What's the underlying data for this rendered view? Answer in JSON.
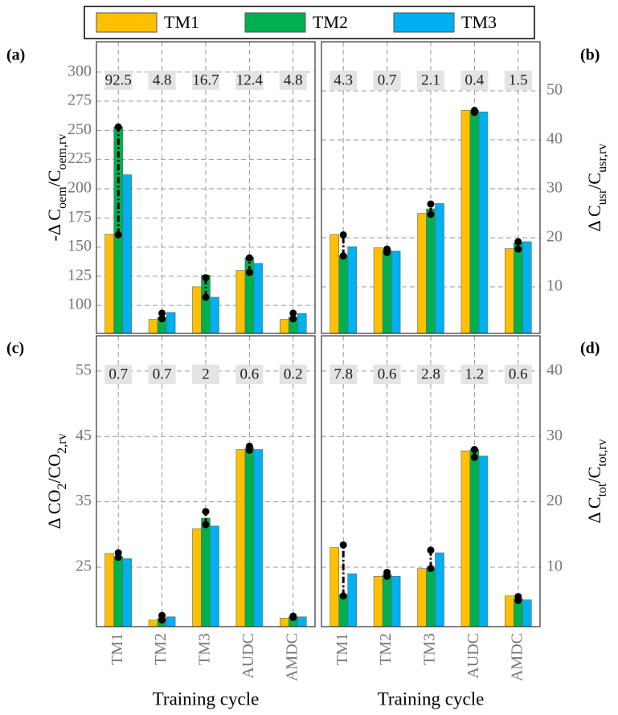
{
  "legend": [
    {
      "name": "TM1",
      "color": "#FFC000"
    },
    {
      "name": "TM2",
      "color": "#00B050"
    },
    {
      "name": "TM3",
      "color": "#00B0F0"
    }
  ],
  "chart_data": [
    {
      "type": "bar",
      "panel": "(a)",
      "axis_side": "left",
      "grid": true,
      "ylabel": [
        "-Δ C",
        "oem",
        "/C",
        "oem,rv"
      ],
      "ylim": [
        76,
        326
      ],
      "yticks": [
        100,
        125,
        150,
        175,
        200,
        225,
        250,
        275,
        300
      ],
      "series": [
        {
          "values": [
            161,
            88,
            116,
            130,
            88
          ]
        },
        {
          "values": [
            253,
            90,
            126,
            141,
            90
          ]
        },
        {
          "values": [
            212,
            94,
            107,
            136,
            93
          ]
        }
      ],
      "whiskers": [
        [
          160.5,
          253
        ],
        [
          88.5,
          93.3
        ],
        [
          107,
          123.7
        ],
        [
          128.3,
          140.7
        ],
        [
          88.5,
          93.3
        ]
      ],
      "spreads": [
        92.5,
        4.8,
        16.7,
        12.4,
        4.8
      ]
    },
    {
      "type": "bar",
      "panel": "(b)",
      "axis_side": "right",
      "grid": true,
      "ylabel": [
        "Δ C",
        "usr",
        "/C",
        "usr,rv"
      ],
      "ylim": [
        0.5,
        60
      ],
      "yticks": [
        10,
        20,
        30,
        40,
        50
      ],
      "series": [
        {
          "values": [
            20.7,
            18,
            25,
            46,
            17.8
          ]
        },
        {
          "values": [
            16.4,
            17.5,
            25.9,
            46,
            19
          ]
        },
        {
          "values": [
            18.2,
            17.3,
            27,
            45.7,
            19.2
          ]
        }
      ],
      "whiskers": [
        [
          16.3,
          20.6
        ],
        [
          17,
          17.7
        ],
        [
          24.8,
          26.9
        ],
        [
          45.6,
          46
        ],
        [
          17.7,
          19.2
        ]
      ],
      "spreads": [
        4.3,
        0.7,
        2.1,
        0.4,
        1.5
      ]
    },
    {
      "type": "bar",
      "panel": "(c)",
      "axis_side": "left",
      "grid": true,
      "ylabel": [
        "Δ CO",
        "2",
        "/CO",
        "2,rv"
      ],
      "ylim": [
        15.9,
        60.4
      ],
      "yticks": [
        25,
        35,
        45,
        55
      ],
      "categories": [
        "TM1",
        "TM2",
        "TM3",
        "AUDC",
        "AMDC"
      ],
      "xlabel": "Training cycle",
      "series": [
        {
          "values": [
            27.1,
            16.9,
            30.9,
            43,
            17.2
          ]
        },
        {
          "values": [
            26.6,
            17.2,
            32.5,
            43.3,
            17.4
          ]
        },
        {
          "values": [
            26.3,
            17.4,
            31.3,
            43,
            17.4
          ]
        }
      ],
      "whiskers": [
        [
          26.5,
          27.2
        ],
        [
          16.9,
          17.6
        ],
        [
          31.5,
          33.5
        ],
        [
          42.9,
          43.5
        ],
        [
          17.3,
          17.5
        ]
      ],
      "spreads": [
        0.7,
        0.7,
        2,
        0.6,
        0.2
      ]
    },
    {
      "type": "bar",
      "panel": "(d)",
      "axis_side": "right",
      "grid": true,
      "ylabel": [
        "Δ C",
        "tot",
        "/C",
        "tot,rv"
      ],
      "ylim": [
        0.9,
        45.4
      ],
      "yticks": [
        10,
        20,
        30,
        40
      ],
      "categories": [
        "TM1",
        "TM2",
        "TM3",
        "AUDC",
        "AMDC"
      ],
      "xlabel": "Training cycle",
      "series": [
        {
          "values": [
            13,
            8.6,
            9.8,
            27.8,
            5.6
          ]
        },
        {
          "values": [
            5.8,
            8.9,
            9.8,
            28,
            5.2
          ]
        },
        {
          "values": [
            9,
            8.6,
            12.2,
            27,
            5
          ]
        }
      ],
      "whiskers": [
        [
          5.6,
          13.4
        ],
        [
          8.6,
          9.2
        ],
        [
          9.8,
          12.6
        ],
        [
          26.8,
          28
        ],
        [
          4.9,
          5.5
        ]
      ],
      "spreads": [
        7.8,
        0.6,
        2.8,
        1.2,
        0.6
      ]
    }
  ]
}
